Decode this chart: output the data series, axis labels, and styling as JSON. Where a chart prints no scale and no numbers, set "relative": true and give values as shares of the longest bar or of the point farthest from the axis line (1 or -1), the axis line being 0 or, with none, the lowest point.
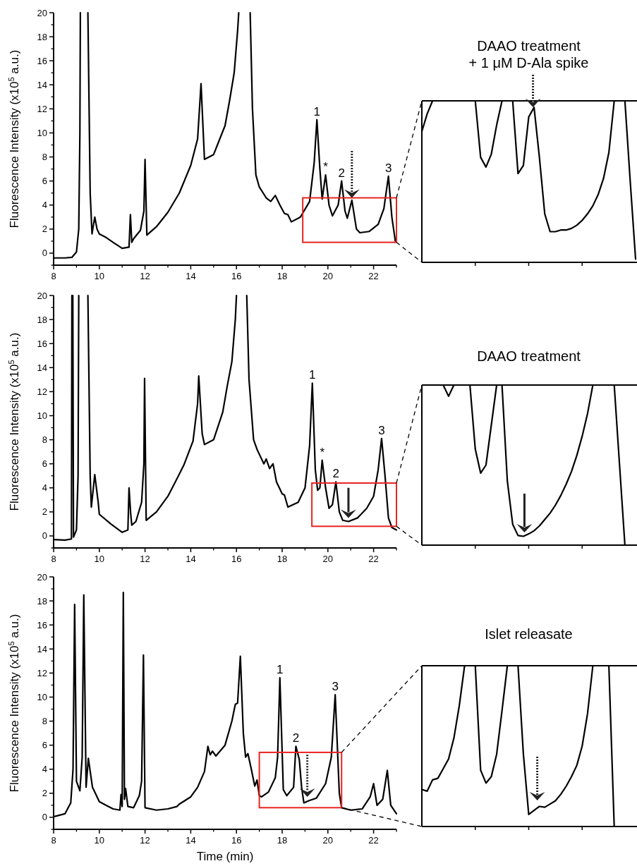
{
  "chart_data": [
    {
      "type": "line",
      "ylabel": "Fluorescence Intensity (x10$^{5}$ a.u.)",
      "xlim": [
        8,
        23
      ],
      "xticks": [
        8,
        10,
        12,
        14,
        16,
        18,
        20,
        22
      ],
      "ylim": [
        -1,
        20
      ],
      "yticks": [
        0,
        2,
        4,
        6,
        8,
        10,
        12,
        14,
        16,
        18,
        20
      ],
      "series": [
        {
          "color": "#000000",
          "x": [
            8,
            8.5,
            8.8,
            9.0,
            9.1,
            9.15,
            9.17,
            9.3,
            9.5,
            9.6,
            9.68,
            9.8,
            9.9,
            10.0,
            10.3,
            10.6,
            11.0,
            11.3,
            11.36,
            11.42,
            11.5,
            11.8,
            11.95,
            12.0,
            12.08,
            12.5,
            13.0,
            13.5,
            14.0,
            14.3,
            14.45,
            14.6,
            15.0,
            15.5,
            15.7,
            15.9,
            16.05,
            16.1,
            16.3,
            16.6,
            16.7,
            16.85,
            17.0,
            17.3,
            17.5,
            17.7,
            17.9,
            18.1,
            18.25,
            18.4,
            18.8,
            19.2,
            19.4,
            19.52,
            19.65,
            19.75,
            19.9,
            20.05,
            20.2,
            20.45,
            20.6,
            20.75,
            20.85,
            21.05,
            21.25,
            21.4,
            21.8,
            22.2,
            22.45,
            22.65,
            22.8,
            22.95
          ],
          "values": [
            -0.4,
            -0.4,
            -0.35,
            0.1,
            2,
            10,
            20,
            null,
            20,
            5,
            1.6,
            3.0,
            2.0,
            1.6,
            1.3,
            0.9,
            0.4,
            0.5,
            3.2,
            0.9,
            1.2,
            1.9,
            3.5,
            7.8,
            1.5,
            2.2,
            3.4,
            5.0,
            7.3,
            9.5,
            14.1,
            7.8,
            8.2,
            10.6,
            12.7,
            15,
            18.5,
            20,
            null,
            20,
            12,
            6.5,
            5.5,
            4.6,
            4.3,
            4.8,
            4.0,
            3.3,
            3.2,
            2.6,
            3.0,
            4.3,
            7.5,
            11.1,
            7.0,
            4.5,
            6.5,
            4.0,
            3.1,
            4.0,
            6.0,
            3.5,
            2.9,
            4.4,
            2.0,
            1.7,
            1.8,
            2.4,
            3.7,
            6.4,
            3.0,
            1.0
          ]
        }
      ],
      "annotations": [
        {
          "text": "1",
          "x": 19.52,
          "y": 11.1
        },
        {
          "text": "*",
          "x": 19.9,
          "y": 6.5
        },
        {
          "text": "2",
          "x": 20.6,
          "y": 6.0
        },
        {
          "text": "3",
          "x": 22.65,
          "y": 6.4
        }
      ]
    },
    {
      "type": "line",
      "relative": true,
      "title": "DAAO treatment\n+ 1 μM D-Ala spike",
      "categories": [
        null,
        null,
        null,
        null,
        null,
        null,
        null,
        null,
        null,
        null,
        null,
        null,
        null,
        null,
        null,
        null,
        null,
        null,
        null,
        null,
        null,
        null,
        null,
        null,
        null,
        null,
        null,
        null,
        null,
        null,
        null,
        null,
        null,
        null,
        null,
        null,
        null,
        null,
        null,
        null,
        null
      ],
      "series": [
        {
          "color": "#000000",
          "values": [
            0.81,
            0.92,
            1,
            1,
            1,
            1,
            1,
            1,
            1,
            1,
            1,
            0.65,
            0.59,
            0.67,
            0.85,
            1,
            1,
            1,
            0.55,
            0.6,
            0.9,
            0.96,
            0.65,
            0.3,
            0.19,
            0.19,
            0.2,
            0.2,
            0.21,
            0.23,
            0.26,
            0.3,
            0.35,
            0.42,
            0.52,
            0.68,
            1,
            1,
            1,
            0.5,
            0.02
          ]
        }
      ]
    },
    {
      "type": "line",
      "ylabel": "Fluorescence Intensity (x10$^{5}$ a.u.)",
      "xlim": [
        8,
        23
      ],
      "xticks": [
        8,
        10,
        12,
        14,
        16,
        18,
        20,
        22
      ],
      "ylim": [
        -1,
        20
      ],
      "yticks": [
        0,
        2,
        4,
        6,
        8,
        10,
        12,
        14,
        16,
        18,
        20
      ],
      "series": [
        {
          "color": "#000000",
          "x": [
            8,
            8.5,
            8.78,
            8.8,
            8.82,
            8.84,
            8.87,
            9.0,
            9.07,
            9.1,
            9.3,
            9.5,
            9.6,
            9.65,
            9.8,
            9.95,
            10.0,
            10.5,
            11.0,
            11.25,
            11.3,
            11.37,
            11.42,
            11.6,
            11.85,
            11.95,
            11.98,
            12.05,
            12.5,
            13.0,
            13.3,
            13.7,
            14.1,
            14.3,
            14.35,
            14.5,
            14.6,
            15.0,
            15.4,
            15.6,
            15.8,
            15.95,
            16.0,
            16.2,
            16.45,
            16.55,
            16.75,
            16.9,
            17.1,
            17.2,
            17.3,
            17.45,
            17.6,
            17.75,
            18.0,
            18.1,
            18.25,
            18.7,
            19.0,
            19.2,
            19.32,
            19.45,
            19.55,
            19.65,
            19.75,
            19.9,
            20.05,
            20.2,
            20.35,
            20.5,
            20.65,
            20.9,
            21.3,
            21.7,
            22.0,
            22.2,
            22.35,
            22.5,
            22.65,
            22.8,
            23.0
          ],
          "values": [
            -0.3,
            -0.35,
            -0.25,
            20,
            null,
            20,
            -0.1,
            0.5,
            5,
            20,
            null,
            20,
            5,
            2.4,
            5.1,
            2.8,
            1.8,
            1.0,
            0.3,
            0.5,
            4.0,
            1.9,
            0.9,
            1.2,
            2.8,
            6,
            13.1,
            1.3,
            2.0,
            3.3,
            4.4,
            5.9,
            7.9,
            11,
            13.3,
            8.5,
            7.6,
            8.0,
            10.3,
            12.5,
            14.5,
            18,
            20,
            null,
            20,
            13,
            8,
            7.2,
            6.4,
            6.0,
            6.4,
            5.6,
            6.0,
            4.5,
            3.5,
            3.4,
            2.4,
            2.8,
            4.0,
            7.5,
            12.7,
            5.5,
            3.8,
            4.0,
            6.3,
            4.0,
            2.3,
            2.6,
            4.5,
            2.0,
            1.3,
            1.2,
            1.5,
            2.3,
            3.3,
            5.5,
            8.1,
            5,
            1.5,
            0.7,
            0.5
          ]
        }
      ],
      "annotations": [
        {
          "text": "1",
          "x": 19.32,
          "y": 12.7
        },
        {
          "text": "*",
          "x": 19.75,
          "y": 6.3
        },
        {
          "text": "2",
          "x": 20.35,
          "y": 4.5
        },
        {
          "text": "3",
          "x": 22.35,
          "y": 8.1
        }
      ]
    },
    {
      "type": "line",
      "relative": true,
      "title": "DAAO treatment",
      "categories": [
        null,
        null,
        null,
        null,
        null,
        null,
        null,
        null,
        null,
        null,
        null,
        null,
        null,
        null,
        null,
        null,
        null,
        null,
        null,
        null,
        null,
        null,
        null,
        null,
        null,
        null,
        null,
        null,
        null,
        null,
        null,
        null,
        null,
        null,
        null
      ],
      "series": [
        {
          "color": "#000000",
          "values": [
            1,
            0.93,
            1,
            1,
            1,
            1,
            0.6,
            0.45,
            0.5,
            0.75,
            1,
            1,
            0.4,
            0.13,
            0.06,
            0.055,
            0.07,
            0.09,
            0.12,
            0.16,
            0.2,
            0.25,
            0.31,
            0.38,
            0.46,
            0.56,
            0.68,
            0.82,
            1,
            1,
            1,
            1,
            1,
            0.5,
            0
          ]
        }
      ]
    },
    {
      "type": "line",
      "xlabel": "Time (min)",
      "ylabel": "Fluorescence Intensity (x10$^{5}$ a.u.)",
      "xlim": [
        8,
        23
      ],
      "xticks": [
        8,
        10,
        12,
        14,
        16,
        18,
        20,
        22
      ],
      "ylim": [
        -1,
        20
      ],
      "yticks": [
        0,
        2,
        4,
        6,
        8,
        10,
        12,
        14,
        16,
        18,
        20
      ],
      "series": [
        {
          "color": "#000000",
          "x": [
            8,
            8.5,
            8.75,
            8.85,
            8.92,
            9.0,
            9.15,
            9.25,
            9.32,
            9.42,
            9.52,
            9.7,
            10.0,
            10.3,
            10.6,
            10.9,
            10.95,
            11.0,
            11.05,
            11.1,
            11.15,
            11.25,
            11.5,
            11.75,
            11.85,
            11.93,
            12.0,
            12.5,
            13.0,
            13.4,
            13.5,
            14.0,
            14.3,
            14.6,
            14.75,
            14.85,
            14.95,
            15.1,
            15.5,
            15.8,
            15.95,
            16.05,
            16.17,
            16.3,
            16.4,
            16.5,
            16.65,
            16.8,
            16.9,
            17.0,
            17.1,
            17.4,
            17.7,
            17.8,
            17.9,
            18.05,
            18.2,
            18.5,
            18.6,
            18.75,
            18.85,
            18.95,
            19.2,
            19.5,
            19.9,
            20.15,
            20.32,
            20.5,
            20.6,
            21.0,
            21.5,
            21.85,
            22.0,
            22.15,
            22.4,
            22.6,
            22.75,
            23.0
          ],
          "values": [
            0.05,
            0.3,
            1.2,
            4,
            17.7,
            3,
            2.2,
            5,
            18.5,
            2.5,
            4.9,
            2.5,
            1.3,
            1.0,
            0.7,
            0.6,
            1.9,
            0.9,
            18.7,
            1.5,
            2.4,
            0.9,
            0.8,
            1.8,
            3,
            13.5,
            0.8,
            0.6,
            0.7,
            0.9,
            1.1,
            1.7,
            2.5,
            3.8,
            5.9,
            5.2,
            5.5,
            5.1,
            6.0,
            8.0,
            9.4,
            9.5,
            13.4,
            7,
            5.0,
            5.3,
            4.0,
            2.6,
            3.1,
            1.8,
            1.7,
            2.1,
            3.3,
            5,
            11.6,
            2.3,
            1.8,
            2.5,
            5.9,
            4.8,
            2.5,
            1.2,
            1.4,
            1.6,
            2.8,
            5.0,
            10.2,
            2.0,
            0.8,
            0.6,
            0.7,
            1.7,
            2.8,
            1.0,
            1.5,
            3.9,
            1.0,
            0.3
          ]
        }
      ],
      "annotations": [
        {
          "text": "1",
          "x": 17.9,
          "y": 11.6
        },
        {
          "text": "2",
          "x": 18.6,
          "y": 5.9
        },
        {
          "text": "3",
          "x": 20.32,
          "y": 10.2
        }
      ]
    },
    {
      "type": "line",
      "relative": true,
      "title": "Islet releasate",
      "categories": [
        null,
        null,
        null,
        null,
        null,
        null,
        null,
        null,
        null,
        null,
        null,
        null,
        null,
        null,
        null,
        null,
        null,
        null,
        null,
        null,
        null,
        null,
        null,
        null,
        null,
        null,
        null,
        null,
        null,
        null,
        null,
        null,
        null,
        null,
        null,
        null,
        null
      ],
      "series": [
        {
          "color": "#000000",
          "values": [
            0.23,
            0.22,
            0.29,
            0.3,
            0.36,
            0.42,
            0.55,
            0.75,
            1,
            1,
            1,
            0.35,
            0.27,
            0.31,
            0.45,
            0.72,
            1,
            1,
            1,
            0.45,
            0.075,
            0.1,
            0.125,
            0.12,
            0.14,
            0.16,
            0.2,
            0.25,
            0.31,
            0.38,
            0.5,
            0.7,
            1,
            1,
            1,
            1,
            0
          ]
        }
      ]
    }
  ]
}
